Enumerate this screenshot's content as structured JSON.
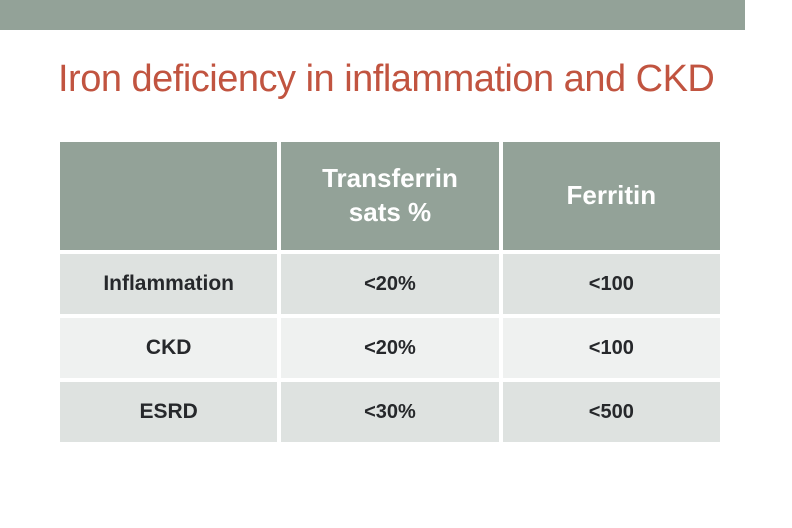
{
  "slide_title": "Iron deficiency in inflammation and CKD",
  "table": {
    "header": [
      "",
      "Transferrin sats %",
      "Ferritin"
    ],
    "rows": [
      [
        "Inflammation",
        "<20%",
        "<100"
      ],
      [
        "CKD",
        "<20%",
        "<100"
      ],
      [
        "ESRD",
        "<30%",
        "<500"
      ]
    ]
  },
  "colors": {
    "accent_sage": "#93a298",
    "title_red": "#c15440",
    "row_shaded": "#dee2e0",
    "row_light": "#eff1f0",
    "header_text": "#ffffff",
    "body_text": "#26282b"
  }
}
